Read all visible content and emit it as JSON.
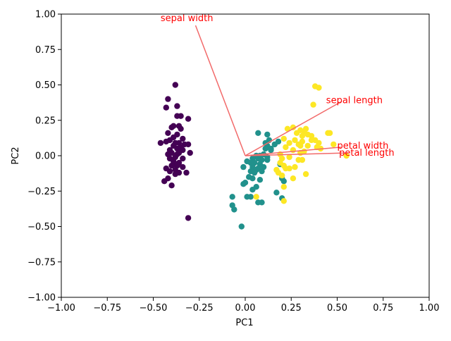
{
  "chart_data": {
    "type": "scatter",
    "title": "",
    "xlabel": "PC1",
    "ylabel": "PC2",
    "xlim": [
      -1.0,
      1.0
    ],
    "ylim": [
      -1.0,
      1.0
    ],
    "x_ticks": [
      "−1.00",
      "−0.75",
      "−0.50",
      "−0.25",
      "0.00",
      "0.25",
      "0.50",
      "0.75",
      "1.00"
    ],
    "x_tick_values": [
      -1.0,
      -0.75,
      -0.5,
      -0.25,
      0.0,
      0.25,
      0.5,
      0.75,
      1.0
    ],
    "y_ticks": [
      "−1.00",
      "−0.75",
      "−0.50",
      "−0.25",
      "0.00",
      "0.25",
      "0.50",
      "0.75",
      "1.00"
    ],
    "y_tick_values": [
      -1.0,
      -0.75,
      -0.5,
      -0.25,
      0.0,
      0.25,
      0.5,
      0.75,
      1.0
    ],
    "grid": false,
    "legend": "none",
    "colors": {
      "class_0": "#440154",
      "class_1": "#21918c",
      "class_2": "#fde725",
      "loading_line": "#f26a6a",
      "loading_text": "#ff0000"
    },
    "series": [
      {
        "color_key": "class_0",
        "points": [
          [
            -0.38,
            0.5
          ],
          [
            -0.42,
            0.4
          ],
          [
            -0.37,
            0.35
          ],
          [
            -0.43,
            0.34
          ],
          [
            -0.35,
            0.28
          ],
          [
            -0.37,
            0.28
          ],
          [
            -0.31,
            0.26
          ],
          [
            -0.39,
            0.21
          ],
          [
            -0.36,
            0.21
          ],
          [
            -0.4,
            0.2
          ],
          [
            -0.35,
            0.19
          ],
          [
            -0.42,
            0.16
          ],
          [
            -0.37,
            0.15
          ],
          [
            -0.39,
            0.13
          ],
          [
            -0.34,
            0.12
          ],
          [
            -0.41,
            0.11
          ],
          [
            -0.43,
            0.1
          ],
          [
            -0.36,
            0.09
          ],
          [
            -0.38,
            0.09
          ],
          [
            -0.46,
            0.09
          ],
          [
            -0.33,
            0.08
          ],
          [
            -0.31,
            0.08
          ],
          [
            -0.39,
            0.07
          ],
          [
            -0.35,
            0.06
          ],
          [
            -0.37,
            0.05
          ],
          [
            -0.34,
            0.04
          ],
          [
            -0.41,
            0.04
          ],
          [
            -0.36,
            0.02
          ],
          [
            -0.4,
            0.02
          ],
          [
            -0.42,
            0.01
          ],
          [
            -0.3,
            0.02
          ],
          [
            -0.37,
            0.01
          ],
          [
            -0.38,
            -0.01
          ],
          [
            -0.34,
            -0.02
          ],
          [
            -0.41,
            -0.02
          ],
          [
            -0.39,
            -0.04
          ],
          [
            -0.36,
            -0.05
          ],
          [
            -0.39,
            -0.06
          ],
          [
            -0.4,
            -0.07
          ],
          [
            -0.37,
            -0.07
          ],
          [
            -0.34,
            -0.08
          ],
          [
            -0.43,
            -0.09
          ],
          [
            -0.38,
            -0.1
          ],
          [
            -0.41,
            -0.11
          ],
          [
            -0.36,
            -0.12
          ],
          [
            -0.32,
            -0.12
          ],
          [
            -0.38,
            -0.13
          ],
          [
            -0.42,
            -0.16
          ],
          [
            -0.44,
            -0.18
          ],
          [
            -0.4,
            -0.21
          ],
          [
            -0.31,
            -0.44
          ]
        ]
      },
      {
        "color_key": "class_1",
        "points": [
          [
            0.07,
            0.16
          ],
          [
            0.12,
            0.15
          ],
          [
            0.13,
            0.11
          ],
          [
            0.18,
            0.1
          ],
          [
            0.11,
            0.09
          ],
          [
            0.16,
            0.08
          ],
          [
            0.12,
            0.07
          ],
          [
            0.14,
            0.05
          ],
          [
            0.11,
            0.05
          ],
          [
            0.1,
            0.01
          ],
          [
            0.06,
            0.0
          ],
          [
            0.08,
            0.0
          ],
          [
            0.12,
            -0.01
          ],
          [
            0.07,
            -0.02
          ],
          [
            0.04,
            -0.02
          ],
          [
            0.09,
            -0.03
          ],
          [
            0.12,
            -0.03
          ],
          [
            0.01,
            -0.04
          ],
          [
            0.05,
            -0.05
          ],
          [
            0.03,
            -0.05
          ],
          [
            0.08,
            -0.06
          ],
          [
            0.19,
            -0.06
          ],
          [
            0.04,
            -0.08
          ],
          [
            0.1,
            -0.08
          ],
          [
            -0.01,
            -0.08
          ],
          [
            0.07,
            -0.09
          ],
          [
            0.06,
            -0.1
          ],
          [
            0.03,
            -0.11
          ],
          [
            0.09,
            -0.11
          ],
          [
            0.05,
            -0.12
          ],
          [
            0.02,
            -0.15
          ],
          [
            0.04,
            -0.16
          ],
          [
            0.08,
            -0.17
          ],
          [
            0.2,
            -0.16
          ],
          [
            0.21,
            -0.18
          ],
          [
            0.0,
            -0.19
          ],
          [
            -0.01,
            -0.2
          ],
          [
            0.06,
            -0.22
          ],
          [
            0.04,
            -0.24
          ],
          [
            0.17,
            -0.26
          ],
          [
            -0.07,
            -0.29
          ],
          [
            0.01,
            -0.29
          ],
          [
            0.03,
            -0.29
          ],
          [
            0.2,
            -0.3
          ],
          [
            0.07,
            -0.33
          ],
          [
            0.09,
            -0.33
          ],
          [
            -0.07,
            -0.35
          ],
          [
            -0.06,
            -0.38
          ],
          [
            -0.02,
            -0.5
          ],
          [
            0.14,
            0.04
          ]
        ]
      },
      {
        "color_key": "class_2",
        "points": [
          [
            0.38,
            0.49
          ],
          [
            0.4,
            0.48
          ],
          [
            0.37,
            0.36
          ],
          [
            0.33,
            0.19
          ],
          [
            0.26,
            0.2
          ],
          [
            0.3,
            0.18
          ],
          [
            0.23,
            0.19
          ],
          [
            0.32,
            0.17
          ],
          [
            0.45,
            0.16
          ],
          [
            0.46,
            0.16
          ],
          [
            0.28,
            0.16
          ],
          [
            0.34,
            0.15
          ],
          [
            0.36,
            0.14
          ],
          [
            0.31,
            0.14
          ],
          [
            0.21,
            0.12
          ],
          [
            0.38,
            0.11
          ],
          [
            0.27,
            0.11
          ],
          [
            0.36,
            0.11
          ],
          [
            0.31,
            0.1
          ],
          [
            0.4,
            0.09
          ],
          [
            0.24,
            0.09
          ],
          [
            0.29,
            0.08
          ],
          [
            0.48,
            0.08
          ],
          [
            0.3,
            0.07
          ],
          [
            0.34,
            0.07
          ],
          [
            0.22,
            0.06
          ],
          [
            0.39,
            0.06
          ],
          [
            0.41,
            0.05
          ],
          [
            0.26,
            0.04
          ],
          [
            0.32,
            0.03
          ],
          [
            0.3,
            0.02
          ],
          [
            0.19,
            0.01
          ],
          [
            0.55,
            0.0
          ],
          [
            0.24,
            -0.01
          ],
          [
            0.2,
            -0.02
          ],
          [
            0.31,
            -0.03
          ],
          [
            0.29,
            -0.03
          ],
          [
            0.19,
            -0.05
          ],
          [
            0.21,
            -0.07
          ],
          [
            0.27,
            -0.08
          ],
          [
            0.24,
            -0.09
          ],
          [
            0.22,
            -0.09
          ],
          [
            0.17,
            -0.1
          ],
          [
            0.33,
            -0.13
          ],
          [
            0.18,
            -0.12
          ],
          [
            0.2,
            -0.14
          ],
          [
            0.26,
            -0.16
          ],
          [
            0.21,
            -0.22
          ],
          [
            0.06,
            -0.29
          ],
          [
            0.21,
            -0.32
          ]
        ]
      }
    ],
    "loadings": [
      {
        "label": "sepal width",
        "end": [
          -0.27,
          0.92
        ],
        "label_pos": [
          -0.46,
          0.97
        ]
      },
      {
        "label": "sepal length",
        "end": [
          0.52,
          0.38
        ],
        "label_pos": [
          0.44,
          0.39
        ]
      },
      {
        "label": "petal width",
        "end": [
          0.52,
          0.06
        ],
        "label_pos": [
          0.5,
          0.07
        ]
      },
      {
        "label": "petal length",
        "end": [
          0.56,
          0.02
        ],
        "label_pos": [
          0.51,
          0.02
        ]
      }
    ]
  }
}
